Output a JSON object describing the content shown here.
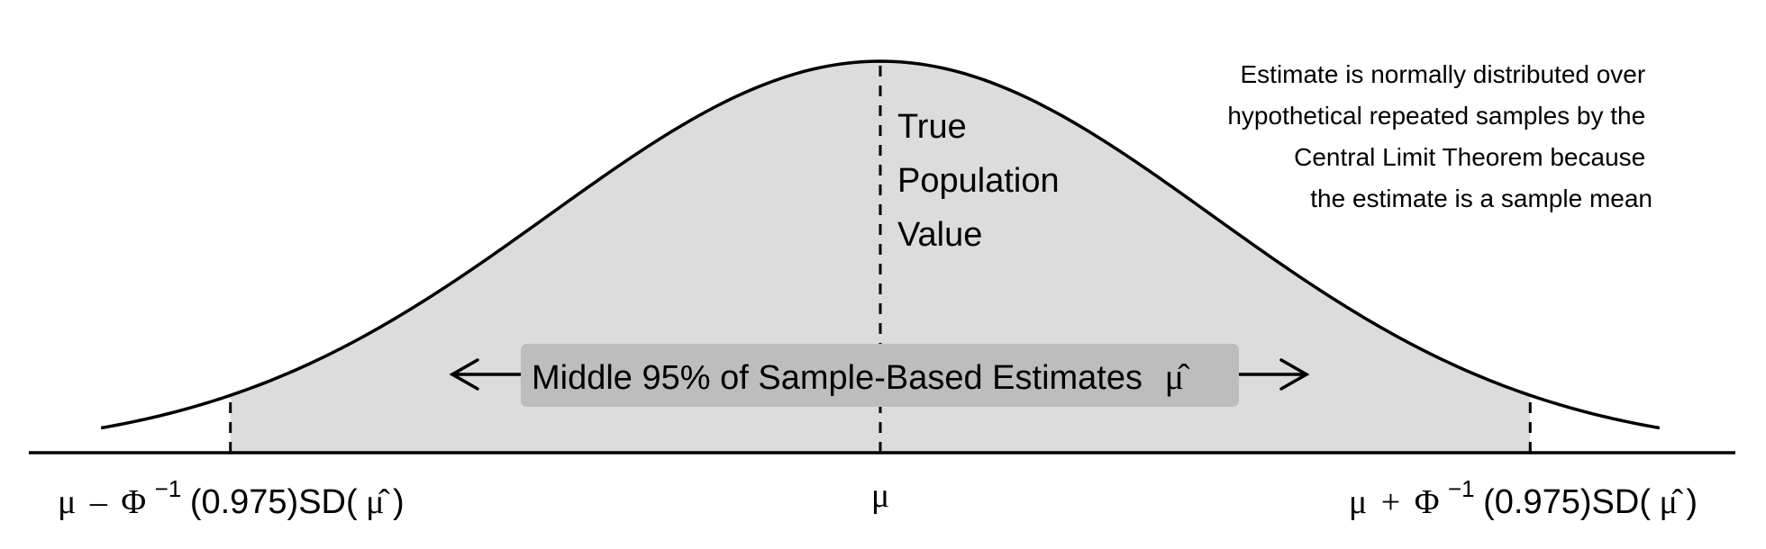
{
  "annotation": {
    "lines": [
      "Estimate is normally distributed over",
      "hypothetical repeated samples by the",
      "Central Limit Theorem because",
      "the estimate is a sample mean"
    ]
  },
  "mean_label": {
    "lines": [
      "True",
      "Population",
      "Value"
    ]
  },
  "interval_label": "Middle 95% of Sample-Based Estimates",
  "estimate_symbol": "μ̂",
  "ticks": {
    "center": "μ",
    "left": {
      "mu": "μ",
      "op": "–",
      "phi": "Φ",
      "sup": "−1",
      "arg": "(0.975)SD(",
      "hat": "μ̂",
      "close": ")"
    },
    "right": {
      "mu": "μ",
      "op": "+",
      "phi": "Φ",
      "sup": "−1",
      "arg": "(0.975)SD(",
      "hat": "μ̂",
      "close": ")"
    }
  },
  "colors": {
    "fill": "#dcdcdc",
    "label_box": "#bdbdbd",
    "line": "#000000"
  },
  "model": {
    "distribution": "normal",
    "central_mass": 0.95,
    "z": 1.96,
    "x_range_sd": [
      -2.35,
      2.35
    ]
  }
}
